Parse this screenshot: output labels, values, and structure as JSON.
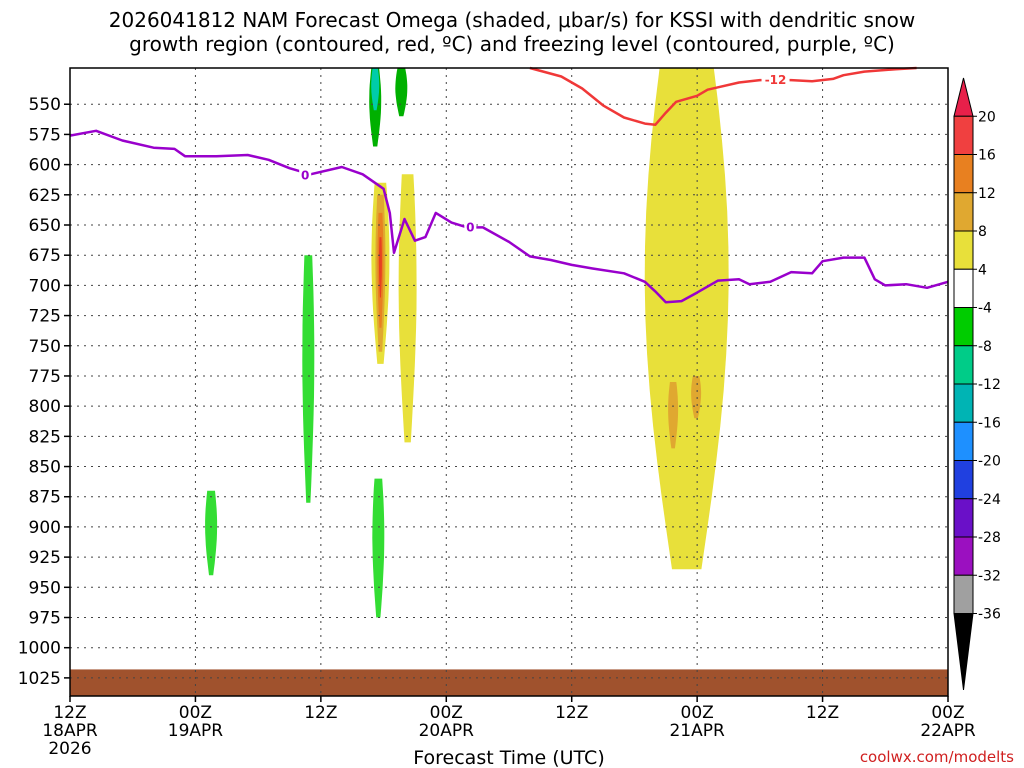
{
  "chart_data": {
    "type": "time-height cross section",
    "title_line1": "2026041812 NAM Forecast Omega (shaded, μbar/s) for KSSI with dendritic snow",
    "title_line2": "growth region (contoured, red, ºC) and freezing level (contoured, purple, ºC)",
    "xlabel": "Forecast Time (UTC)",
    "credit": "coolwx.com/modelts",
    "x_range_hours": [
      0,
      84
    ],
    "x_ticks": [
      {
        "hour": 0,
        "line1": "12Z",
        "line2": "18APR",
        "line3": "2026"
      },
      {
        "hour": 12,
        "line1": "00Z",
        "line2": "19APR",
        "line3": ""
      },
      {
        "hour": 24,
        "line1": "12Z",
        "line2": "",
        "line3": ""
      },
      {
        "hour": 36,
        "line1": "00Z",
        "line2": "20APR",
        "line3": ""
      },
      {
        "hour": 48,
        "line1": "12Z",
        "line2": "",
        "line3": ""
      },
      {
        "hour": 60,
        "line1": "00Z",
        "line2": "21APR",
        "line3": ""
      },
      {
        "hour": 72,
        "line1": "12Z",
        "line2": "",
        "line3": ""
      },
      {
        "hour": 84,
        "line1": "00Z",
        "line2": "22APR",
        "line3": ""
      }
    ],
    "y_range_hpa": [
      520,
      1040
    ],
    "y_ticks": [
      "550",
      "575",
      "600",
      "625",
      "650",
      "675",
      "700",
      "725",
      "750",
      "775",
      "800",
      "825",
      "850",
      "875",
      "900",
      "925",
      "950",
      "975",
      "1000",
      "1025"
    ],
    "freezing_level": {
      "label": "0",
      "color": "#9900cc",
      "points": [
        [
          0,
          576
        ],
        [
          2.5,
          572
        ],
        [
          5,
          580
        ],
        [
          8,
          586
        ],
        [
          10,
          587
        ],
        [
          11,
          593
        ],
        [
          14,
          593
        ],
        [
          17,
          592
        ],
        [
          19,
          596
        ],
        [
          21,
          603
        ],
        [
          23,
          608
        ],
        [
          26,
          602
        ],
        [
          28,
          608
        ],
        [
          30,
          620
        ],
        [
          30.6,
          640
        ],
        [
          31,
          673
        ],
        [
          32,
          645
        ],
        [
          33,
          663
        ],
        [
          34,
          660
        ],
        [
          35,
          640
        ],
        [
          36.5,
          648
        ],
        [
          38,
          652
        ],
        [
          39.5,
          652
        ],
        [
          42,
          664
        ],
        [
          44,
          676
        ],
        [
          46,
          679
        ],
        [
          48,
          683
        ],
        [
          50,
          686
        ],
        [
          53,
          690
        ],
        [
          55,
          697
        ],
        [
          56,
          705
        ],
        [
          57,
          714
        ],
        [
          58.5,
          713
        ],
        [
          60,
          706
        ],
        [
          62,
          696
        ],
        [
          64,
          695
        ],
        [
          65,
          699
        ],
        [
          67,
          697
        ],
        [
          69,
          689
        ],
        [
          71,
          690
        ],
        [
          72,
          680
        ],
        [
          74,
          677
        ],
        [
          76,
          677
        ],
        [
          77,
          695
        ],
        [
          78,
          700
        ],
        [
          80,
          699
        ],
        [
          82,
          702
        ],
        [
          84,
          697
        ]
      ],
      "label_positions": [
        [
          22.5,
          609
        ],
        [
          38.3,
          652
        ]
      ]
    },
    "dgz_minus12": {
      "label": "-12",
      "color": "#f03838",
      "points": [
        [
          44,
          520
        ],
        [
          47,
          527
        ],
        [
          49,
          537
        ],
        [
          51,
          551
        ],
        [
          53,
          561
        ],
        [
          55,
          566
        ],
        [
          56,
          567
        ],
        [
          57,
          557
        ],
        [
          58,
          548
        ],
        [
          60,
          543
        ],
        [
          61,
          538
        ],
        [
          62,
          536
        ],
        [
          64,
          532
        ],
        [
          66,
          530
        ],
        [
          69,
          530
        ],
        [
          71,
          531
        ],
        [
          73,
          529
        ],
        [
          74,
          526
        ],
        [
          76,
          523
        ],
        [
          79,
          521
        ],
        [
          81,
          520
        ]
      ],
      "label_positions": [
        [
          67.5,
          530
        ]
      ]
    },
    "omega_regions": [
      {
        "level": "-8",
        "color": "#00b000",
        "hour": 29.2,
        "p_top": 520,
        "p_bottom": 585
      },
      {
        "level": "-12",
        "color": "#00ccaa",
        "hour": 29.2,
        "p_top": 520,
        "p_bottom": 555
      },
      {
        "level": "-8",
        "color": "#00b000",
        "hour": 31.7,
        "p_top": 520,
        "p_bottom": 560
      },
      {
        "level": "-4",
        "color": "#33dd33",
        "hour": 22.8,
        "p_top": 675,
        "p_bottom": 880
      },
      {
        "level": "-4",
        "color": "#33dd33",
        "hour": 13.5,
        "p_top": 870,
        "p_bottom": 940
      },
      {
        "level": "-4",
        "color": "#33dd33",
        "hour": 29.5,
        "p_top": 860,
        "p_bottom": 975
      },
      {
        "level": "4",
        "color": "#e8e03a",
        "hour": 29.7,
        "p_top": 615,
        "p_bottom": 765
      },
      {
        "level": "8",
        "color": "#e0a830",
        "hour": 29.7,
        "p_top": 625,
        "p_bottom": 755
      },
      {
        "level": "12",
        "color": "#e88020",
        "hour": 29.7,
        "p_top": 640,
        "p_bottom": 735
      },
      {
        "level": "16",
        "color": "#e84020",
        "hour": 29.7,
        "p_top": 660,
        "p_bottom": 710
      },
      {
        "level": "4",
        "color": "#e8e03a",
        "hour": 32.3,
        "p_top": 608,
        "p_bottom": 830
      },
      {
        "level": "4",
        "color": "#e8e03a",
        "hour": 59,
        "p_top": 520,
        "p_bottom": 935
      },
      {
        "level": "8",
        "color": "#e0a830",
        "hour": 57.7,
        "p_top": 780,
        "p_bottom": 835
      },
      {
        "level": "8",
        "color": "#e0a830",
        "hour": 59.9,
        "p_top": 775,
        "p_bottom": 810
      }
    ],
    "terrain": {
      "color": "#a0522d",
      "surface_hpa": 1018
    },
    "colorbar": {
      "ticks": [
        "20",
        "16",
        "12",
        "8",
        "4",
        "-4",
        "-8",
        "-12",
        "-16",
        "-20",
        "-24",
        "-28",
        "-32",
        "-36"
      ],
      "colors": [
        "#e8204a",
        "#f04040",
        "#e88020",
        "#e0a830",
        "#e8e03a",
        "#ffffff",
        "#00cc00",
        "#00cc88",
        "#00b4b4",
        "#1e90ff",
        "#2040e0",
        "#6a10c8",
        "#9b10c0",
        "#a0a0a0",
        "#000000"
      ]
    }
  }
}
